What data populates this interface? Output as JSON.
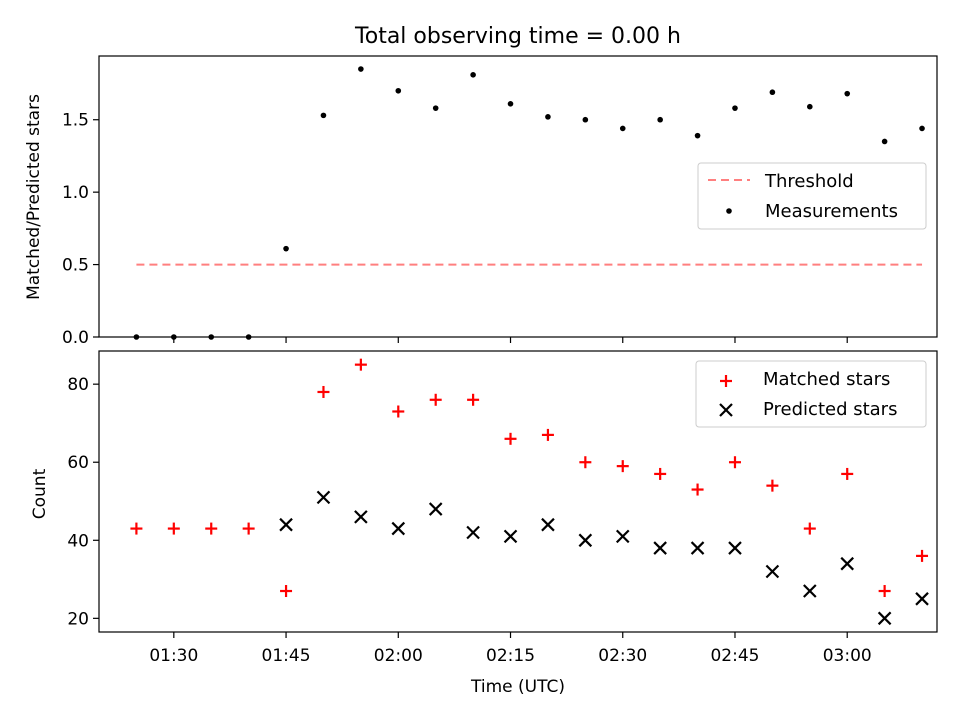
{
  "chart_data": [
    {
      "type": "scatter",
      "title": "Total observing time = 0.00 h",
      "xlabel": "",
      "ylabel": "Matched/Predicted stars",
      "x_unit": "time (UTC)",
      "xlim": [
        "01:20",
        "03:12"
      ],
      "ylim": [
        0,
        1.94
      ],
      "yticks": [
        0.0,
        0.5,
        1.0,
        1.5
      ],
      "ytick_labels": [
        "0.0",
        "0.5",
        "1.0",
        "1.5"
      ],
      "legend_position": "center-right",
      "series": [
        {
          "name": "Threshold",
          "kind": "dashed-line",
          "color": "#ff7f7f",
          "x": [
            "01:25",
            "03:10"
          ],
          "y": [
            0.5,
            0.5
          ]
        },
        {
          "name": "Measurements",
          "kind": "dot",
          "color": "#000000",
          "x": [
            "01:25",
            "01:30",
            "01:35",
            "01:40",
            "01:45",
            "01:50",
            "01:55",
            "02:00",
            "02:05",
            "02:10",
            "02:15",
            "02:20",
            "02:25",
            "02:30",
            "02:35",
            "02:40",
            "02:45",
            "02:50",
            "02:55",
            "03:00",
            "03:05",
            "03:10"
          ],
          "y": [
            0.0,
            0.0,
            0.0,
            0.0,
            0.61,
            1.53,
            1.85,
            1.7,
            1.58,
            1.81,
            1.61,
            1.52,
            1.5,
            1.44,
            1.5,
            1.39,
            1.58,
            1.69,
            1.59,
            1.68,
            1.35,
            1.44
          ]
        }
      ]
    },
    {
      "type": "scatter",
      "title": "",
      "xlabel": "Time (UTC)",
      "ylabel": "Count",
      "xlim": [
        "01:20",
        "03:12"
      ],
      "ylim": [
        16.5,
        88.5
      ],
      "yticks": [
        20,
        40,
        60,
        80
      ],
      "ytick_labels": [
        "20",
        "40",
        "60",
        "80"
      ],
      "xticks": [
        "01:30",
        "01:45",
        "02:00",
        "02:15",
        "02:30",
        "02:45",
        "03:00"
      ],
      "xtick_labels": [
        "01:30",
        "01:45",
        "02:00",
        "02:15",
        "02:30",
        "02:45",
        "03:00"
      ],
      "legend_position": "top-right",
      "series": [
        {
          "name": "Matched stars",
          "kind": "plus",
          "color": "#ff0000",
          "x": [
            "01:25",
            "01:30",
            "01:35",
            "01:40",
            "01:45",
            "01:50",
            "01:55",
            "02:00",
            "02:05",
            "02:10",
            "02:15",
            "02:20",
            "02:25",
            "02:30",
            "02:35",
            "02:40",
            "02:45",
            "02:50",
            "02:55",
            "03:00",
            "03:05",
            "03:10"
          ],
          "y": [
            43,
            43,
            43,
            43,
            27,
            78,
            85,
            73,
            76,
            76,
            66,
            67,
            60,
            59,
            57,
            53,
            60,
            54,
            43,
            57,
            27,
            36
          ]
        },
        {
          "name": "Predicted stars",
          "kind": "x",
          "color": "#000000",
          "x": [
            "01:45",
            "01:50",
            "01:55",
            "02:00",
            "02:05",
            "02:10",
            "02:15",
            "02:20",
            "02:25",
            "02:30",
            "02:35",
            "02:40",
            "02:45",
            "02:50",
            "02:55",
            "03:00",
            "03:05",
            "03:10"
          ],
          "y": [
            44,
            51,
            46,
            43,
            48,
            42,
            41,
            44,
            40,
            41,
            38,
            38,
            38,
            32,
            27,
            34,
            20,
            25
          ]
        }
      ]
    }
  ]
}
